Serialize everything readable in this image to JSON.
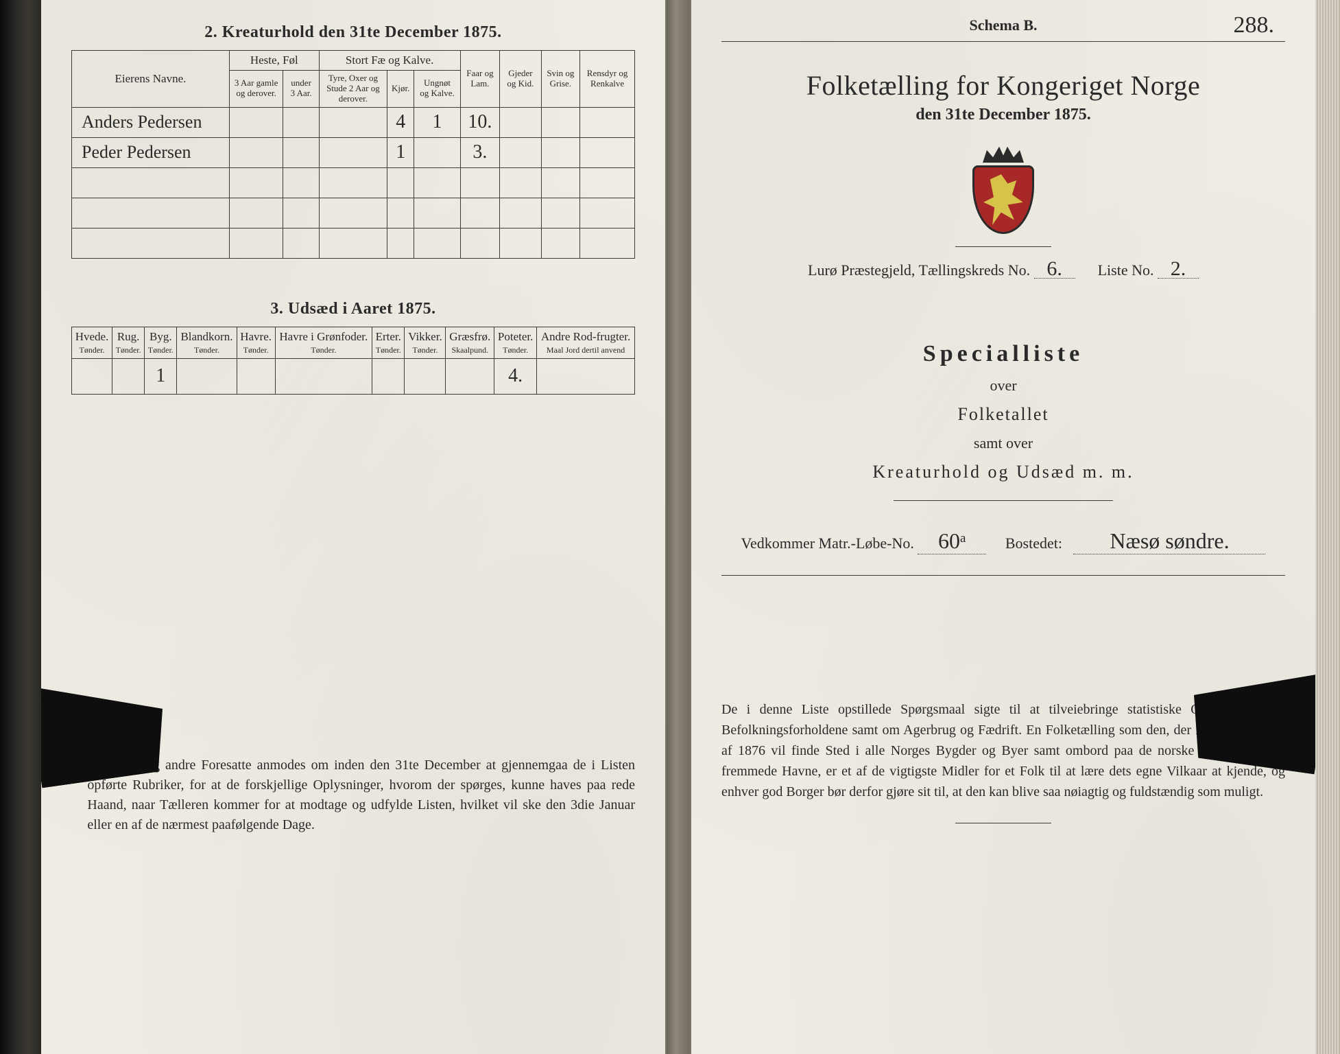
{
  "left": {
    "section2_title": "2.  Kreaturhold den 31te December 1875.",
    "table2": {
      "col_owner": "Eierens Navne.",
      "grp_horse": "Heste, Føl",
      "col_horse_old": "3 Aar gamle og derover.",
      "col_horse_young": "under 3 Aar.",
      "grp_cattle": "Stort Fæ og Kalve.",
      "col_cattle_bull": "Tyre, Oxer og Stude 2 Aar og derover.",
      "col_cattle_cow": "Kjør.",
      "col_cattle_young": "Ungnøt og Kalve.",
      "col_sheep": "Faar og Lam.",
      "col_goat": "Gjeder og Kid.",
      "col_pig": "Svin og Grise.",
      "col_reindeer": "Rensdyr og Renkalve",
      "rows": [
        {
          "name": "Anders Pedersen",
          "cattle_cow": "4",
          "cattle_young": "1",
          "sheep": "10."
        },
        {
          "name": "Peder Pedersen",
          "cattle_cow": "1",
          "sheep": "3."
        }
      ]
    },
    "section3_title": "3.  Udsæd i Aaret 1875.",
    "table3": {
      "cols": [
        {
          "h": "Hvede.",
          "s": "Tønder."
        },
        {
          "h": "Rug.",
          "s": "Tønder."
        },
        {
          "h": "Byg.",
          "s": "Tønder."
        },
        {
          "h": "Blandkorn.",
          "s": "Tønder."
        },
        {
          "h": "Havre.",
          "s": "Tønder."
        },
        {
          "h": "Havre i Grønfoder.",
          "s": "Tønder."
        },
        {
          "h": "Erter.",
          "s": "Tønder."
        },
        {
          "h": "Vikker.",
          "s": "Tønder."
        },
        {
          "h": "Græsfrø.",
          "s": "Skaalpund."
        },
        {
          "h": "Poteter.",
          "s": "Tønder."
        },
        {
          "h": "Andre Rod-frugter.",
          "s": "Maal Jord dertil anvend"
        }
      ],
      "row": {
        "byg": "1",
        "poteter": "4."
      }
    },
    "notice": "Husfædre og andre Foresatte anmodes om inden den 31te December at gjennemgaa de i Listen opførte Rubriker, for at de forskjellige Oplysninger, hvorom der spørges, kunne haves paa rede Haand, naar Tælleren kommer for at modtage og udfylde Listen, hvilket vil ske den 3die Januar eller en af de nærmest paafølgende Dage."
  },
  "right": {
    "schema": "Schema B.",
    "folio": "288.",
    "title_main": "Folketælling for Kongeriget Norge",
    "title_sub": "den 31te December 1875.",
    "parish_label_pre": "Lurø",
    "parish_label": " Præstegjeld,  Tællingskreds No. ",
    "kreds_no": "6.",
    "liste_label": "Liste No. ",
    "liste_no": "2.",
    "specialliste": "Specialliste",
    "over": "over",
    "folketallet": "Folketallet",
    "samt_over": "samt over",
    "kreatur": "Kreaturhold og Udsæd m. m.",
    "vedk_pre": "Vedkommer Matr.-Løbe-No. ",
    "matr_no": "60ᵃ",
    "bosted_label": "Bostedet:",
    "bosted": "Næsø søndre.",
    "notice": "De i denne Liste opstillede Spørgsmaal sigte til at tilveiebringe statistiske Oplysninger om Befolkningsforholdene samt om Agerbrug og Fædrift.  En Folketælling som den, der i de første Dage af 1876 vil finde Sted i alle Norges Bygder og Byer samt ombord paa de norske Skibe ude i de fremmede Havne, er et af de vigtigste Midler for et Folk til at lære dets egne Vilkaar at kjende, og enhver god Borger bør derfor gjøre sit til, at den kan blive saa nøiagtig og fuldstændig som muligt."
  }
}
